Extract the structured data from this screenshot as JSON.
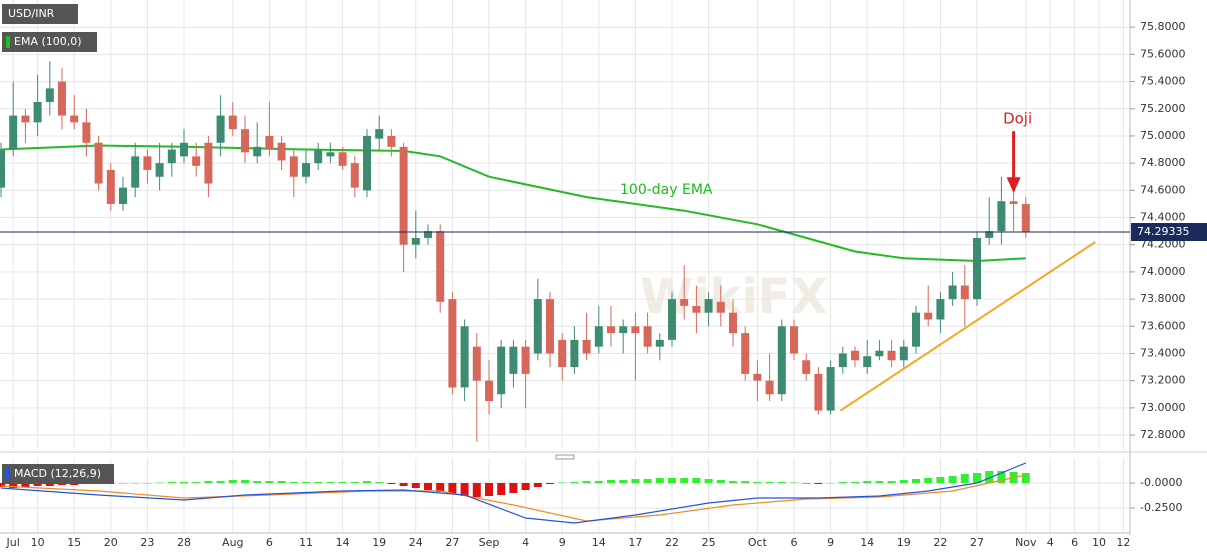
{
  "chart_data": {
    "type": "candlestick",
    "title": "USD/INR",
    "watermark": "WikiFX",
    "categories": [
      null,
      "Jul",
      null,
      "10",
      null,
      null,
      "15",
      null,
      null,
      "20",
      null,
      null,
      "23",
      null,
      null,
      "28",
      null,
      null,
      null,
      "Aug",
      null,
      null,
      "6",
      null,
      null,
      "11",
      null,
      null,
      "14",
      null,
      null,
      "19",
      null,
      null,
      "24",
      null,
      null,
      "27",
      null,
      null,
      "Sep",
      null,
      null,
      "4",
      null,
      null,
      "9",
      null,
      null,
      "14",
      null,
      null,
      "17",
      null,
      null,
      "22",
      null,
      null,
      "25",
      null,
      null,
      null,
      "Oct",
      null,
      null,
      "6",
      null,
      null,
      "9",
      null,
      null,
      "14",
      null,
      null,
      "19",
      null,
      null,
      "22",
      null,
      null,
      "27",
      null,
      null,
      null,
      "Nov",
      null,
      "4",
      null,
      "6",
      null,
      "10",
      null,
      "12"
    ],
    "open": [
      74.62,
      74.9,
      75.15,
      75.1,
      75.25,
      75.4,
      75.15,
      75.1,
      74.95,
      74.75,
      74.5,
      74.62,
      74.85,
      74.7,
      74.8,
      74.85,
      74.85,
      74.95,
      74.95,
      75.15,
      75.05,
      74.85,
      75.0,
      74.95,
      74.85,
      74.7,
      74.8,
      74.85,
      74.88,
      74.8,
      74.6,
      74.98,
      75.0,
      74.92,
      74.2,
      74.25,
      74.3,
      73.8,
      73.15,
      73.45,
      73.2,
      73.1,
      73.25,
      73.45,
      73.4,
      73.8,
      73.5,
      73.3,
      73.5,
      73.45,
      73.6,
      73.55,
      73.6,
      73.6,
      73.45,
      73.5,
      73.8,
      73.75,
      73.7,
      73.78,
      73.7,
      73.55,
      73.25,
      73.2,
      73.1,
      73.6,
      73.35,
      73.25,
      72.98,
      73.3,
      73.42,
      73.3,
      73.38,
      73.42,
      73.35,
      73.45,
      73.7,
      73.65,
      73.8,
      73.9,
      73.8,
      74.25,
      74.3,
      74.52,
      74.5,
      null,
      null,
      null,
      null,
      null,
      null,
      null,
      null
    ],
    "high": [
      74.95,
      75.4,
      75.2,
      75.45,
      75.55,
      75.5,
      75.3,
      75.2,
      75.0,
      74.8,
      74.7,
      74.95,
      74.9,
      74.95,
      74.95,
      75.05,
      74.95,
      75.0,
      75.3,
      75.25,
      75.15,
      75.1,
      75.25,
      75.0,
      74.9,
      74.9,
      74.95,
      74.95,
      74.92,
      74.85,
      75.05,
      75.15,
      75.05,
      74.95,
      74.45,
      74.35,
      74.35,
      73.85,
      73.65,
      73.55,
      73.35,
      73.5,
      73.5,
      73.5,
      73.95,
      73.85,
      73.55,
      73.6,
      73.7,
      73.75,
      73.75,
      73.65,
      73.7,
      73.7,
      73.55,
      73.85,
      74.05,
      73.9,
      73.85,
      73.9,
      73.8,
      73.6,
      73.35,
      73.4,
      73.65,
      73.65,
      73.4,
      73.3,
      73.35,
      73.45,
      73.45,
      73.5,
      73.5,
      73.5,
      73.5,
      73.75,
      73.9,
      73.85,
      74.0,
      74.05,
      74.3,
      74.55,
      74.7,
      74.7,
      74.55,
      null,
      null,
      null,
      null,
      null,
      null,
      null,
      null
    ],
    "low": [
      74.55,
      74.85,
      74.95,
      75.0,
      75.15,
      75.05,
      75.05,
      74.85,
      74.6,
      74.45,
      74.45,
      74.55,
      74.65,
      74.6,
      74.7,
      74.8,
      74.7,
      74.55,
      74.85,
      75.0,
      74.8,
      74.8,
      74.85,
      74.75,
      74.55,
      74.65,
      74.75,
      74.8,
      74.75,
      74.55,
      74.55,
      74.9,
      74.85,
      74.0,
      74.1,
      74.2,
      73.7,
      73.1,
      73.05,
      72.75,
      72.95,
      73.0,
      73.15,
      73.0,
      73.35,
      73.3,
      73.2,
      73.25,
      73.35,
      73.4,
      73.45,
      73.4,
      73.2,
      73.4,
      73.35,
      73.45,
      73.65,
      73.55,
      73.6,
      73.6,
      73.45,
      73.2,
      73.05,
      73.05,
      73.05,
      73.35,
      73.2,
      72.95,
      72.95,
      73.25,
      73.3,
      73.25,
      73.35,
      73.3,
      73.3,
      73.4,
      73.6,
      73.55,
      73.75,
      73.6,
      73.75,
      74.2,
      74.2,
      74.3,
      74.25,
      null,
      null,
      null,
      null,
      null,
      null,
      null,
      null
    ],
    "close": [
      74.9,
      75.15,
      75.1,
      75.25,
      75.35,
      75.15,
      75.1,
      74.95,
      74.65,
      74.5,
      74.62,
      74.85,
      74.75,
      74.8,
      74.9,
      74.95,
      74.78,
      74.65,
      75.15,
      75.05,
      74.88,
      74.92,
      74.9,
      74.82,
      74.7,
      74.8,
      74.9,
      74.88,
      74.78,
      74.62,
      75.0,
      75.05,
      74.92,
      74.2,
      74.25,
      74.3,
      73.78,
      73.15,
      73.6,
      73.2,
      73.05,
      73.45,
      73.45,
      73.25,
      73.8,
      73.4,
      73.3,
      73.5,
      73.4,
      73.6,
      73.55,
      73.6,
      73.55,
      73.45,
      73.5,
      73.8,
      73.75,
      73.7,
      73.8,
      73.7,
      73.55,
      73.25,
      73.2,
      73.1,
      73.6,
      73.4,
      73.25,
      72.98,
      73.3,
      73.4,
      73.35,
      73.38,
      73.42,
      73.35,
      73.45,
      73.7,
      73.65,
      73.8,
      73.9,
      73.8,
      74.25,
      74.3,
      74.52,
      74.5,
      74.29335,
      null,
      null,
      null,
      null,
      null,
      null,
      null,
      null
    ],
    "up_color": "#3d8c72",
    "down_color": "#d8675b",
    "ylim": [
      72.69,
      76.0
    ],
    "yticks": [
      {
        "value": 72.8,
        "label": "72.8000"
      },
      {
        "value": 73.0,
        "label": "73.0000"
      },
      {
        "value": 73.2,
        "label": "73.2000"
      },
      {
        "value": 73.4,
        "label": "73.4000"
      },
      {
        "value": 73.6,
        "label": "73.6000"
      },
      {
        "value": 73.8,
        "label": "73.8000"
      },
      {
        "value": 74.0,
        "label": "74.0000"
      },
      {
        "value": 74.2,
        "label": "74.2000"
      },
      {
        "value": 74.4,
        "label": "74.4000"
      },
      {
        "value": 74.6,
        "label": "74.6000"
      },
      {
        "value": 74.8,
        "label": "74.8000"
      },
      {
        "value": 75.0,
        "label": "75.0000"
      },
      {
        "value": 75.2,
        "label": "75.2000"
      },
      {
        "value": 75.4,
        "label": "75.4000"
      },
      {
        "value": 75.6,
        "label": "75.6000"
      },
      {
        "value": 75.8,
        "label": "75.8000"
      }
    ],
    "grid": true,
    "last_price": 74.29335,
    "ema": {
      "name": "EMA (100,0)",
      "annotation": "100-day EMA",
      "color": "#22bb22",
      "x": [
        0,
        8,
        15,
        25,
        33,
        36,
        40,
        48,
        56,
        62,
        66,
        70,
        74,
        80,
        84
      ],
      "values": [
        74.9,
        74.93,
        74.92,
        74.9,
        74.89,
        74.85,
        74.7,
        74.55,
        74.45,
        74.35,
        74.25,
        74.15,
        74.1,
        74.08,
        74.1
      ]
    },
    "trendline": {
      "color": "#f5a623",
      "x": [
        68.8,
        89.7
      ],
      "values": [
        72.98,
        74.22
      ]
    },
    "annotation": {
      "text": "Doji",
      "color": "#e02020",
      "x": 83,
      "value": 74.52
    },
    "macd": {
      "name": "MACD (12,26,9)",
      "ylim": [
        -0.49,
        0.25
      ],
      "yticks": [
        {
          "value": 0,
          "label": "-0.0000"
        },
        {
          "value": -0.25,
          "label": "-0.2500"
        }
      ],
      "histogram": [
        -0.04,
        -0.05,
        -0.04,
        -0.03,
        -0.03,
        -0.02,
        -0.02,
        -0.01,
        -0.01,
        0,
        0,
        0,
        0,
        0.005,
        0.01,
        0.01,
        0.01,
        0.02,
        0.02,
        0.03,
        0.03,
        0.02,
        0.02,
        0.02,
        0.01,
        0.01,
        0.01,
        0.01,
        0.01,
        0.01,
        0.02,
        0.01,
        -0.01,
        -0.03,
        -0.05,
        -0.07,
        -0.09,
        -0.11,
        -0.13,
        -0.14,
        -0.13,
        -0.12,
        -0.1,
        -0.07,
        -0.04,
        -0.01,
        0.005,
        0.01,
        0.02,
        0.02,
        0.03,
        0.03,
        0.04,
        0.04,
        0.05,
        0.05,
        0.05,
        0.05,
        0.04,
        0.03,
        0.02,
        0.02,
        0.01,
        0.01,
        0.01,
        0.005,
        -0.005,
        -0.01,
        0,
        0.01,
        0.01,
        0.02,
        0.02,
        0.02,
        0.03,
        0.04,
        0.05,
        0.06,
        0.07,
        0.09,
        0.1,
        0.12,
        0.12,
        0.11,
        0.1,
        null,
        null,
        null,
        null,
        null,
        null,
        null,
        null
      ],
      "pos_color": "#33ee33",
      "neg_color": "#dd1111",
      "macd_line": {
        "color": "#2255dd",
        "x": [
          0,
          8,
          15,
          20,
          28,
          33,
          38,
          43,
          47,
          52,
          58,
          62,
          67,
          72,
          76,
          80,
          83,
          84
        ],
        "values": [
          -0.05,
          -0.12,
          -0.17,
          -0.12,
          -0.08,
          -0.07,
          -0.12,
          -0.35,
          -0.4,
          -0.32,
          -0.2,
          -0.15,
          -0.15,
          -0.13,
          -0.08,
          0.0,
          0.15,
          0.2
        ]
      },
      "signal_line": {
        "color": "#f08a24",
        "x": [
          0,
          8,
          15,
          22,
          30,
          36,
          42,
          48,
          54,
          60,
          66,
          72,
          78,
          84
        ],
        "values": [
          -0.03,
          -0.08,
          -0.15,
          -0.12,
          -0.08,
          -0.08,
          -0.22,
          -0.38,
          -0.32,
          -0.22,
          -0.16,
          -0.14,
          -0.08,
          0.08
        ]
      }
    }
  }
}
